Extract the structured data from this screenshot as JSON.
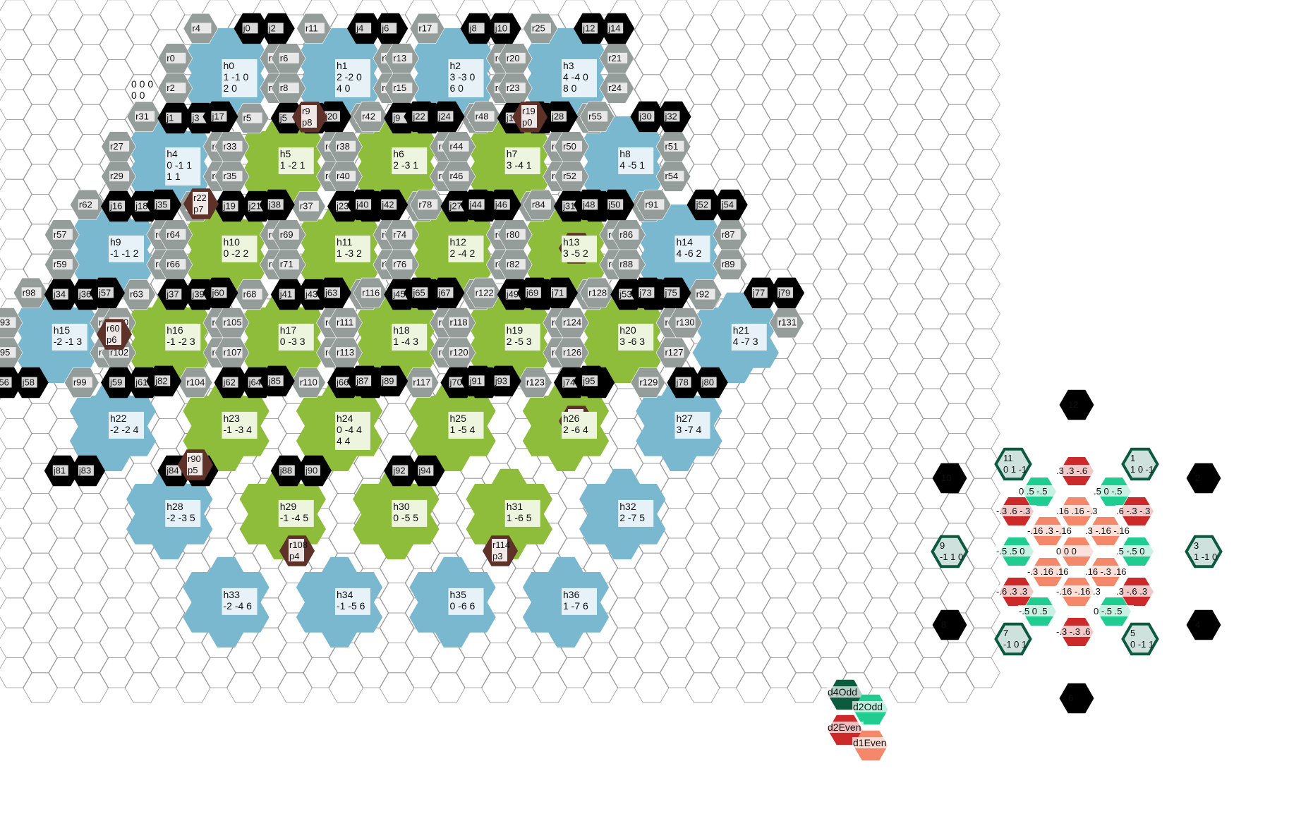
{
  "colors": {
    "grid_stroke": "#9a9a9a",
    "road": "#959d9b",
    "junction": "#000000",
    "port": "#5e3129",
    "water_hex": "#7ab8cf",
    "land_hex": "#8ebd3b",
    "label_bg_water": "#e6f2f7",
    "label_bg_land": "#eef5df",
    "label_bg_road": "#e8e8e8",
    "label_bg_port": "#f0e8e6",
    "d4_odd": "#0c5b3f",
    "d2_odd": "#20cc8f",
    "d2_even": "#cc2a2a",
    "d1_even": "#f4886b",
    "dir_neighbor_fill": "#cfe1dd"
  },
  "origin_label": {
    "line1": "0 0 0",
    "line2": "0 0"
  },
  "hexes": [
    {
      "id": "h0",
      "kind": "water",
      "l1": "h0",
      "l2": "1 -1 0",
      "l3": "2 0"
    },
    {
      "id": "h1",
      "kind": "water",
      "l1": "h1",
      "l2": "2 -2 0",
      "l3": "4 0"
    },
    {
      "id": "h2",
      "kind": "water",
      "l1": "h2",
      "l2": "3 -3 0",
      "l3": "6 0"
    },
    {
      "id": "h3",
      "kind": "water",
      "l1": "h3",
      "l2": "4 -4 0",
      "l3": "8 0"
    },
    {
      "id": "h4",
      "kind": "water",
      "l1": "h4",
      "l2": "0 -1 1",
      "l3": "1 1"
    },
    {
      "id": "h5",
      "kind": "land",
      "l1": "h5",
      "l2": "1 -2 1",
      "l3": ""
    },
    {
      "id": "h6",
      "kind": "land",
      "l1": "h6",
      "l2": "2 -3 1",
      "l3": ""
    },
    {
      "id": "h7",
      "kind": "land",
      "l1": "h7",
      "l2": "3 -4 1",
      "l3": ""
    },
    {
      "id": "h8",
      "kind": "water",
      "l1": "h8",
      "l2": "4 -5 1",
      "l3": ""
    },
    {
      "id": "h9",
      "kind": "water",
      "l1": "h9",
      "l2": "-1 -1 2",
      "l3": ""
    },
    {
      "id": "h10",
      "kind": "land",
      "l1": "h10",
      "l2": "0 -2 2",
      "l3": ""
    },
    {
      "id": "h11",
      "kind": "land",
      "l1": "h11",
      "l2": "1 -3 2",
      "l3": ""
    },
    {
      "id": "h12",
      "kind": "land",
      "l1": "h12",
      "l2": "2 -4 2",
      "l3": ""
    },
    {
      "id": "h13",
      "kind": "land",
      "l1": "h13",
      "l2": "3 -5 2",
      "l3": ""
    },
    {
      "id": "h14",
      "kind": "water",
      "l1": "h14",
      "l2": "4 -6 2",
      "l3": ""
    },
    {
      "id": "h15",
      "kind": "water",
      "l1": "h15",
      "l2": "-2 -1 3",
      "l3": ""
    },
    {
      "id": "h16",
      "kind": "land",
      "l1": "h16",
      "l2": "-1 -2 3",
      "l3": ""
    },
    {
      "id": "h17",
      "kind": "land",
      "l1": "h17",
      "l2": "0 -3 3",
      "l3": ""
    },
    {
      "id": "h18",
      "kind": "land",
      "l1": "h18",
      "l2": "1 -4 3",
      "l3": ""
    },
    {
      "id": "h19",
      "kind": "land",
      "l1": "h19",
      "l2": "2 -5 3",
      "l3": ""
    },
    {
      "id": "h20",
      "kind": "land",
      "l1": "h20",
      "l2": "3 -6 3",
      "l3": ""
    },
    {
      "id": "h21",
      "kind": "water",
      "l1": "h21",
      "l2": "4 -7 3",
      "l3": ""
    },
    {
      "id": "h22",
      "kind": "water",
      "l1": "h22",
      "l2": "-2 -2 4",
      "l3": ""
    },
    {
      "id": "h23",
      "kind": "land",
      "l1": "h23",
      "l2": "-1 -3 4",
      "l3": ""
    },
    {
      "id": "h24",
      "kind": "land",
      "l1": "h24",
      "l2": "0 -4 4",
      "l3": "4 4"
    },
    {
      "id": "h25",
      "kind": "land",
      "l1": "h25",
      "l2": "1 -5 4",
      "l3": ""
    },
    {
      "id": "h26",
      "kind": "land",
      "l1": "h26",
      "l2": "2 -6 4",
      "l3": ""
    },
    {
      "id": "h27",
      "kind": "water",
      "l1": "h27",
      "l2": "3 -7 4",
      "l3": ""
    },
    {
      "id": "h28",
      "kind": "water",
      "l1": "h28",
      "l2": "-2 -3 5",
      "l3": ""
    },
    {
      "id": "h29",
      "kind": "land",
      "l1": "h29",
      "l2": "-1 -4 5",
      "l3": ""
    },
    {
      "id": "h30",
      "kind": "land",
      "l1": "h30",
      "l2": "0 -5 5",
      "l3": ""
    },
    {
      "id": "h31",
      "kind": "land",
      "l1": "h31",
      "l2": "1 -6 5",
      "l3": ""
    },
    {
      "id": "h32",
      "kind": "water",
      "l1": "h32",
      "l2": "2 -7 5",
      "l3": ""
    },
    {
      "id": "h33",
      "kind": "water",
      "l1": "h33",
      "l2": "-2 -4 6",
      "l3": ""
    },
    {
      "id": "h34",
      "kind": "water",
      "l1": "h34",
      "l2": "-1 -5 6",
      "l3": ""
    },
    {
      "id": "h35",
      "kind": "water",
      "l1": "h35",
      "l2": "0 -6 6",
      "l3": ""
    },
    {
      "id": "h36",
      "kind": "water",
      "l1": "h36",
      "l2": "1 -7 6",
      "l3": ""
    }
  ],
  "junctions": [
    "j0",
    "j1",
    "j2",
    "j3",
    "j4",
    "j5",
    "j6",
    "j7",
    "j8",
    "j9",
    "j10",
    "j11",
    "j12",
    "j13",
    "j14",
    "j15",
    "j16",
    "j17",
    "j18",
    "j19",
    "j20",
    "j21",
    "j22",
    "j23",
    "j24",
    "j25",
    "j26",
    "j27",
    "j28",
    "j29",
    "j30",
    "j31",
    "j32",
    "j33",
    "j34",
    "j35",
    "j36",
    "j37",
    "j38",
    "j39",
    "j40",
    "j41",
    "j42",
    "j43",
    "j44",
    "j45",
    "j46",
    "j47",
    "j48",
    "j49",
    "j50",
    "j51",
    "j52",
    "j53",
    "j54",
    "j55",
    "j56",
    "j57",
    "j58",
    "j59",
    "j60",
    "j61",
    "j62",
    "j63",
    "j64",
    "j65",
    "j66",
    "j67",
    "j68",
    "j69",
    "j70",
    "j71",
    "j72",
    "j73",
    "j74",
    "j75",
    "j76",
    "j77",
    "j78",
    "j79",
    "j80",
    "j81",
    "j82",
    "j83",
    "j84",
    "j85",
    "j86",
    "j87",
    "j88",
    "j89",
    "j90",
    "j91",
    "j92",
    "j93",
    "j94",
    "j95"
  ],
  "roads": [
    "r0",
    "r1",
    "r2",
    "r3",
    "r4",
    "r5",
    "r6",
    "r7",
    "r8",
    "r10",
    "r11",
    "r12",
    "r13",
    "r14",
    "r15",
    "r16",
    "r17",
    "r18",
    "r20",
    "r21",
    "r23",
    "r24",
    "r25",
    "r26",
    "r27",
    "r28",
    "r29",
    "r30",
    "r31",
    "r32",
    "r33",
    "r34",
    "r35",
    "r36",
    "r37",
    "r38",
    "r39",
    "r40",
    "r41",
    "r42",
    "r43",
    "r44",
    "r45",
    "r46",
    "r47",
    "r48",
    "r49",
    "r50",
    "r51",
    "r52",
    "r54",
    "r55",
    "r56",
    "r57",
    "r58",
    "r59",
    "r61",
    "r62",
    "r63",
    "r64",
    "r65",
    "r66",
    "r67",
    "r68",
    "r69",
    "r70",
    "r71",
    "r72",
    "r73",
    "r74",
    "r75",
    "r76",
    "r77",
    "r78",
    "r79",
    "r80",
    "r81",
    "r82",
    "r83",
    "r84",
    "r85",
    "r86",
    "r87",
    "r88",
    "r89",
    "r91",
    "r92",
    "r93",
    "r94",
    "r95",
    "r96",
    "r98",
    "r99",
    "r100",
    "r101",
    "r102",
    "r103",
    "r104",
    "r105",
    "r106",
    "r107",
    "r109",
    "r110",
    "r111",
    "r112",
    "r113",
    "r115",
    "r116",
    "r117",
    "r118",
    "r119",
    "r120",
    "r121",
    "r122",
    "r123",
    "r124",
    "r125",
    "r126",
    "r127",
    "r128",
    "r129",
    "r130",
    "r131"
  ],
  "ports": [
    {
      "road": "r9",
      "port": "p8"
    },
    {
      "road": "r19",
      "port": "p0"
    },
    {
      "road": "r22",
      "port": "p7"
    },
    {
      "road": "r53",
      "port": "p1"
    },
    {
      "road": "r60",
      "port": "p6"
    },
    {
      "road": "r90",
      "port": "p5"
    },
    {
      "road": "r97",
      "port": "p2"
    },
    {
      "road": "r108",
      "port": "p4"
    },
    {
      "road": "r114",
      "port": "p3"
    }
  ],
  "directions": {
    "neighbors": [
      {
        "id": "11",
        "coords": "0 1 -1"
      },
      {
        "id": "1",
        "coords": "1 0 -1"
      },
      {
        "id": "9",
        "coords": "-1 1 0"
      },
      {
        "id": "3",
        "coords": "1 -1 0"
      },
      {
        "id": "7",
        "coords": "-1 0 1"
      },
      {
        "id": "5",
        "coords": "0 -1 1"
      }
    ],
    "far": [
      "12",
      "10",
      "2",
      "8",
      "4",
      "6"
    ],
    "inner_labels": [
      ".3 .3 -.6",
      "0 .5 -.5",
      ".5 0 -.5",
      "-.3 .6 -.3",
      ".16 .16 -.3",
      ".6 -.3 -.3",
      "-.16 .3 -.16",
      ".3 -.16 -.16",
      "-.5 .5 0",
      "0 0 0",
      ".5 -.5 0",
      "-.3 .16 .16",
      ".16 -.3 .16",
      "-.6 .3 .3",
      "-.16 -.16 .3",
      ".3 -.6 .3",
      "-.5 0 .5",
      "0 -.5 .5",
      "-.3 -.3 .6"
    ]
  },
  "legend": [
    {
      "label": "d4Odd",
      "color": "#0c5b3f"
    },
    {
      "label": "d2Odd",
      "color": "#20cc8f"
    },
    {
      "label": "d2Even",
      "color": "#cc2a2a"
    },
    {
      "label": "d1Even",
      "color": "#f4886b"
    }
  ]
}
